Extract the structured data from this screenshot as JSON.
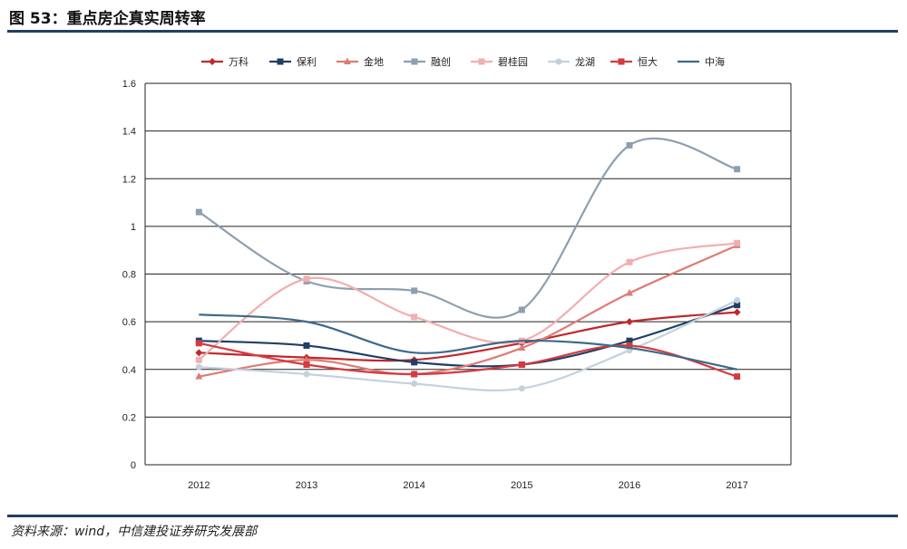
{
  "header": {
    "title": "图 53：重点房企真实周转率"
  },
  "footer": {
    "source": "资料来源：wind，中信建投证券研究发展部"
  },
  "chart_data": {
    "type": "line",
    "title": "图 53：重点房企真实周转率",
    "x": [
      "2012",
      "2013",
      "2014",
      "2015",
      "2016",
      "2017"
    ],
    "ylim": [
      0,
      1.6
    ],
    "yticks": [
      "0",
      "0.2",
      "0.4",
      "0.6",
      "0.8",
      "1",
      "1.2",
      "1.4",
      "1.6"
    ],
    "grid": true,
    "legend": "top",
    "series": [
      {
        "name": "万科",
        "color": "#c0282d",
        "marker": "diamond",
        "values": [
          0.47,
          0.45,
          0.44,
          0.51,
          0.6,
          0.64
        ]
      },
      {
        "name": "保利",
        "color": "#1f3f66",
        "marker": "square",
        "values": [
          0.52,
          0.5,
          0.43,
          0.42,
          0.52,
          0.67
        ]
      },
      {
        "name": "金地",
        "color": "#e07b73",
        "marker": "triangle",
        "values": [
          0.37,
          0.44,
          0.38,
          0.49,
          0.72,
          0.92
        ]
      },
      {
        "name": "融创",
        "color": "#8d9fb0",
        "marker": "square",
        "values": [
          1.06,
          0.77,
          0.73,
          0.65,
          1.34,
          1.24
        ]
      },
      {
        "name": "碧桂园",
        "color": "#f2aeb0",
        "marker": "square",
        "values": [
          0.44,
          0.78,
          0.62,
          0.52,
          0.85,
          0.93
        ]
      },
      {
        "name": "龙湖",
        "color": "#c4d1dd",
        "marker": "circle",
        "values": [
          0.41,
          0.38,
          0.34,
          0.32,
          0.48,
          0.69
        ]
      },
      {
        "name": "恒大",
        "color": "#d43a3f",
        "marker": "square",
        "values": [
          0.51,
          0.42,
          0.38,
          0.42,
          0.5,
          0.37
        ]
      },
      {
        "name": "中海",
        "color": "#3d6a8a",
        "marker": "none",
        "values": [
          0.63,
          0.6,
          0.47,
          0.52,
          0.49,
          0.4
        ]
      }
    ]
  }
}
